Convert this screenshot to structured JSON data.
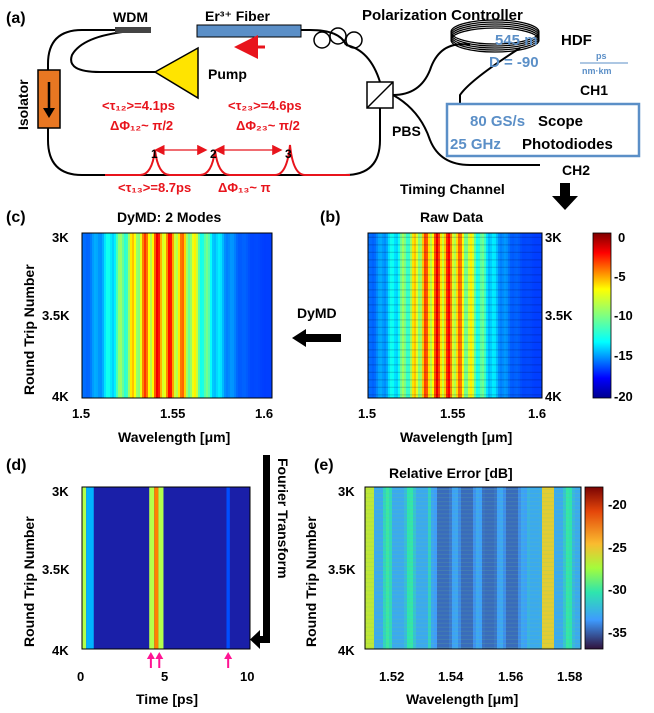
{
  "panels": {
    "a": "(a)",
    "b": "(b)",
    "c": "(c)",
    "d": "(d)",
    "e": "(e)"
  },
  "setup": {
    "wdm": "WDM",
    "er_fiber": "Er³⁺ Fiber",
    "polarization_controller": "Polarization Controller",
    "pump": "Pump",
    "isolator": "Isolator",
    "pbs": "PBS",
    "hdf_length": "545 m",
    "hdf_label": "HDF",
    "dispersion": "D = -90",
    "dispersion_unit_num": "ps",
    "dispersion_unit_den": "nm·km",
    "ch1": "CH1",
    "ch2": "CH2",
    "scope_rate": "80 GS/s",
    "scope_label": "Scope",
    "photodiode_bw": "25 GHz",
    "photodiode_label": "Photodiodes",
    "timing_channel": "Timing Channel",
    "tau12": "<τ₁₂>=4.1ps",
    "phi12": "ΔΦ₁₂~ π/2",
    "tau23": "<τ₂₃>=4.6ps",
    "phi23": "ΔΦ₂₃~ π/2",
    "tau13": "<τ₁₃>=8.7ps",
    "phi13": "ΔΦ₁₃~ π",
    "pulse_labels": [
      "1",
      "2",
      "3"
    ],
    "dymd_arrow": "DyMD",
    "fourier_transform": "Fourier Transform"
  },
  "colors": {
    "red_accent": "#e8141c",
    "blue_accent": "#5b8fc7",
    "pump": "#ffe400",
    "isolator": "#e87722",
    "fiber": "#5b8fc7",
    "magenta_marker": "#ff1493"
  },
  "plots": {
    "c": {
      "title": "DyMD: 2 Modes",
      "ylabel": "Round Trip Number",
      "xlabel": "Wavelength [μm]",
      "xticks": [
        "1.5",
        "1.55",
        "1.6"
      ],
      "yticks": [
        "3K",
        "3.5K",
        "4K"
      ]
    },
    "b": {
      "title": "Raw Data",
      "xlabel": "Wavelength [μm]",
      "xticks": [
        "1.5",
        "1.55",
        "1.6"
      ],
      "yticks": [
        "3K",
        "3.5K",
        "4K"
      ],
      "colorbar_ticks": [
        "0",
        "-5",
        "-10",
        "-15",
        "-20"
      ]
    },
    "d": {
      "ylabel": "Round Trip Number",
      "xlabel": "Time [ps]",
      "xticks": [
        "0",
        "5",
        "10"
      ],
      "yticks": [
        "3K",
        "3.5K",
        "4K"
      ],
      "marker_times_ps": [
        4.1,
        4.6,
        8.7
      ]
    },
    "e": {
      "title": "Relative Error [dB]",
      "ylabel": "Round Trip Number",
      "xlabel": "Wavelength [μm]",
      "xticks": [
        "1.52",
        "1.54",
        "1.56",
        "1.58"
      ],
      "yticks": [
        "3K",
        "3.5K",
        "4K"
      ],
      "colorbar_ticks": [
        "-20",
        "-25",
        "-30",
        "-35"
      ]
    }
  }
}
